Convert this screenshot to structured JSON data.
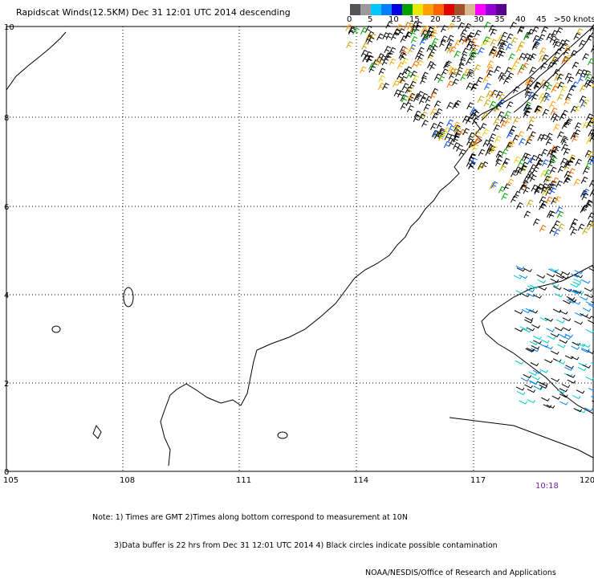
{
  "title": "Rapidscat Winds(12.5KM) Dec 31 12:01 UTC 2014 descending",
  "color_scale": {
    "labels": [
      "0",
      "5",
      "10",
      "15",
      "20",
      "25",
      "30",
      "35",
      "40",
      "45",
      ">50 knots"
    ],
    "colors": [
      "#555555",
      "#9a9a9a",
      "#00c8ff",
      "#0080ff",
      "#0000e0",
      "#00a000",
      "#e8e800",
      "#ffa000",
      "#ff6400",
      "#e00000",
      "#a0522d",
      "#d8b890",
      "#ff00ff",
      "#9000d0",
      "#5a0090"
    ]
  },
  "axes": {
    "lon_ticks": [
      "105",
      "108",
      "111",
      "114",
      "117",
      "120"
    ],
    "lat_ticks": [
      "0",
      "2",
      "4",
      "6",
      "8",
      "10"
    ]
  },
  "time_label": "10:18",
  "notes": {
    "line1": "Note: 1) Times are GMT 2)Times along bottom correspond to measurement at 10N",
    "line2": "3)Data buffer is 22 hrs from Dec 31 12:01 UTC 2014 4) Black circles indicate possible contamination",
    "line3": "NOAA/NESDIS/Office of Research and Applications"
  }
}
